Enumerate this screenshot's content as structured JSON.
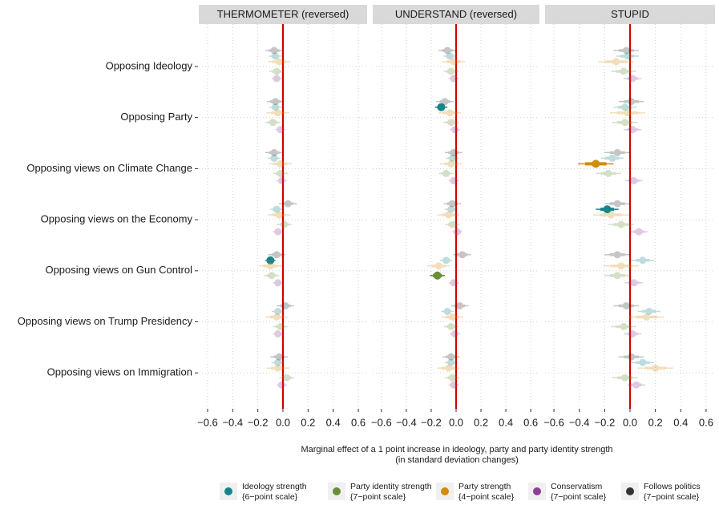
{
  "chart_data": {
    "type": "dot-whisker",
    "categories": [
      "Opposing Ideology",
      "Opposing Party",
      "Opposing views on Climate Change",
      "Opposing views on the Economy",
      "Opposing views on Gun Control",
      "Opposing views on Trump Presidency",
      "Opposing views on Immigration"
    ],
    "x_label": [
      "Marginal effect of a 1 point increase in ideology, party and party identity strength",
      "(in standard deviation changes)"
    ],
    "xlim": [
      -0.67,
      0.67
    ],
    "xticks": [
      {
        "value": -0.6,
        "label": "−0.6"
      },
      {
        "value": -0.4,
        "label": "−0.4"
      },
      {
        "value": -0.2,
        "label": "−0.2"
      },
      {
        "value": 0,
        "label": "0.0"
      },
      0.2,
      0.4,
      0.6
    ],
    "reference_value": 0,
    "reference_color": "#d40000",
    "grid": true,
    "legend_position": "bottom",
    "legend": [
      {
        "name": "Ideology strength",
        "detail": "{6−point scale}",
        "color": "#16868c"
      },
      {
        "name": "Party identity strength",
        "detail": "{7−point scale}",
        "color": "#6b8e3a"
      },
      {
        "name": "Party strength",
        "detail": "{4−point scale}",
        "color": "#d18c0a"
      },
      {
        "name": "Conservatism",
        "detail": "{7−point scale}",
        "color": "#8e3f96"
      },
      {
        "name": "Follows politics",
        "detail": "{7−point scale}",
        "color": "#333333"
      }
    ],
    "panels": [
      {
        "title": "THERMOMETER (reversed)",
        "series": [
          {
            "values": [
              -0.06,
              -0.06,
              -0.07,
              -0.05,
              -0.1,
              -0.04,
              -0.04
            ],
            "errors": [
              0.05,
              0.05,
              0.05,
              0.05,
              0.04,
              0.05,
              0.05
            ],
            "significant": [
              false,
              false,
              false,
              false,
              true,
              false,
              false
            ]
          },
          {
            "values": [
              -0.05,
              -0.08,
              -0.02,
              0.01,
              -0.09,
              -0.02,
              0.03
            ],
            "errors": [
              0.06,
              0.06,
              0.06,
              0.06,
              0.06,
              0.06,
              0.06
            ],
            "significant": [
              false,
              false,
              false,
              false,
              false,
              false,
              false
            ]
          },
          {
            "values": [
              -0.03,
              -0.04,
              -0.02,
              -0.03,
              -0.1,
              -0.05,
              -0.04
            ],
            "errors": [
              0.09,
              0.09,
              0.09,
              0.09,
              0.09,
              0.09,
              0.09
            ],
            "significant": [
              false,
              false,
              false,
              false,
              false,
              false,
              false
            ]
          },
          {
            "values": [
              -0.05,
              -0.02,
              -0.01,
              -0.04,
              -0.04,
              -0.04,
              -0.01
            ],
            "errors": [
              0.04,
              0.04,
              0.04,
              0.04,
              0.04,
              0.04,
              0.04
            ],
            "significant": [
              false,
              false,
              false,
              false,
              false,
              false,
              false
            ]
          },
          {
            "values": [
              -0.07,
              -0.06,
              -0.07,
              0.04,
              -0.05,
              0.02,
              -0.03
            ],
            "errors": [
              0.07,
              0.07,
              0.07,
              0.07,
              0.07,
              0.07,
              0.07
            ],
            "significant": [
              false,
              false,
              false,
              false,
              false,
              false,
              false
            ]
          }
        ]
      },
      {
        "title": "UNDERSTAND (reversed)",
        "series": [
          {
            "values": [
              -0.05,
              -0.12,
              -0.03,
              -0.04,
              -0.08,
              -0.07,
              -0.04
            ],
            "errors": [
              0.05,
              0.05,
              0.05,
              0.05,
              0.05,
              0.05,
              0.05
            ],
            "significant": [
              false,
              true,
              false,
              false,
              false,
              false,
              false
            ]
          },
          {
            "values": [
              -0.04,
              -0.04,
              -0.08,
              -0.03,
              -0.15,
              -0.04,
              -0.03
            ],
            "errors": [
              0.06,
              0.06,
              0.06,
              0.06,
              0.06,
              0.06,
              0.06
            ],
            "significant": [
              false,
              false,
              false,
              false,
              true,
              false,
              false
            ]
          },
          {
            "values": [
              -0.02,
              -0.05,
              -0.04,
              -0.06,
              -0.14,
              -0.03,
              -0.06
            ],
            "errors": [
              0.09,
              0.09,
              0.09,
              0.09,
              0.09,
              0.09,
              0.09
            ],
            "significant": [
              false,
              false,
              false,
              false,
              false,
              false,
              false
            ]
          },
          {
            "values": [
              -0.02,
              -0.01,
              -0.02,
              0.01,
              -0.02,
              -0.01,
              -0.02
            ],
            "errors": [
              0.04,
              0.04,
              0.04,
              0.04,
              0.04,
              0.04,
              0.04
            ],
            "significant": [
              false,
              false,
              false,
              false,
              false,
              false,
              false
            ]
          },
          {
            "values": [
              -0.07,
              -0.09,
              -0.02,
              -0.03,
              0.05,
              0.03,
              -0.04
            ],
            "errors": [
              0.07,
              0.07,
              0.07,
              0.07,
              0.07,
              0.07,
              0.07
            ],
            "significant": [
              false,
              false,
              false,
              false,
              false,
              false,
              false
            ]
          }
        ]
      },
      {
        "title": "STUPID",
        "series": [
          {
            "values": [
              -0.02,
              -0.04,
              -0.14,
              -0.18,
              0.1,
              0.15,
              0.1
            ],
            "errors": [
              0.09,
              0.09,
              0.09,
              0.09,
              0.09,
              0.09,
              0.09
            ],
            "significant": [
              false,
              false,
              false,
              true,
              false,
              false,
              false
            ]
          },
          {
            "values": [
              -0.05,
              -0.04,
              -0.17,
              -0.07,
              -0.1,
              -0.05,
              -0.04
            ],
            "errors": [
              0.1,
              0.1,
              0.1,
              0.1,
              0.1,
              0.1,
              0.1
            ],
            "significant": [
              false,
              false,
              false,
              false,
              false,
              false,
              false
            ]
          },
          {
            "values": [
              -0.11,
              -0.02,
              -0.27,
              -0.15,
              -0.07,
              0.13,
              0.2
            ],
            "errors": [
              0.14,
              0.14,
              0.14,
              0.14,
              0.14,
              0.14,
              0.14
            ],
            "significant": [
              false,
              false,
              true,
              false,
              false,
              false,
              false
            ]
          },
          {
            "values": [
              0.02,
              0.02,
              0.03,
              0.07,
              0.03,
              0.02,
              0.05
            ],
            "errors": [
              0.07,
              0.07,
              0.07,
              0.07,
              0.07,
              0.07,
              0.07
            ],
            "significant": [
              false,
              false,
              false,
              false,
              false,
              false,
              false
            ]
          },
          {
            "values": [
              -0.03,
              0.01,
              -0.1,
              -0.1,
              -0.1,
              -0.03,
              0.01
            ],
            "errors": [
              0.1,
              0.1,
              0.1,
              0.1,
              0.1,
              0.1,
              0.1
            ],
            "significant": [
              false,
              false,
              false,
              false,
              false,
              false,
              false
            ]
          }
        ]
      }
    ]
  }
}
